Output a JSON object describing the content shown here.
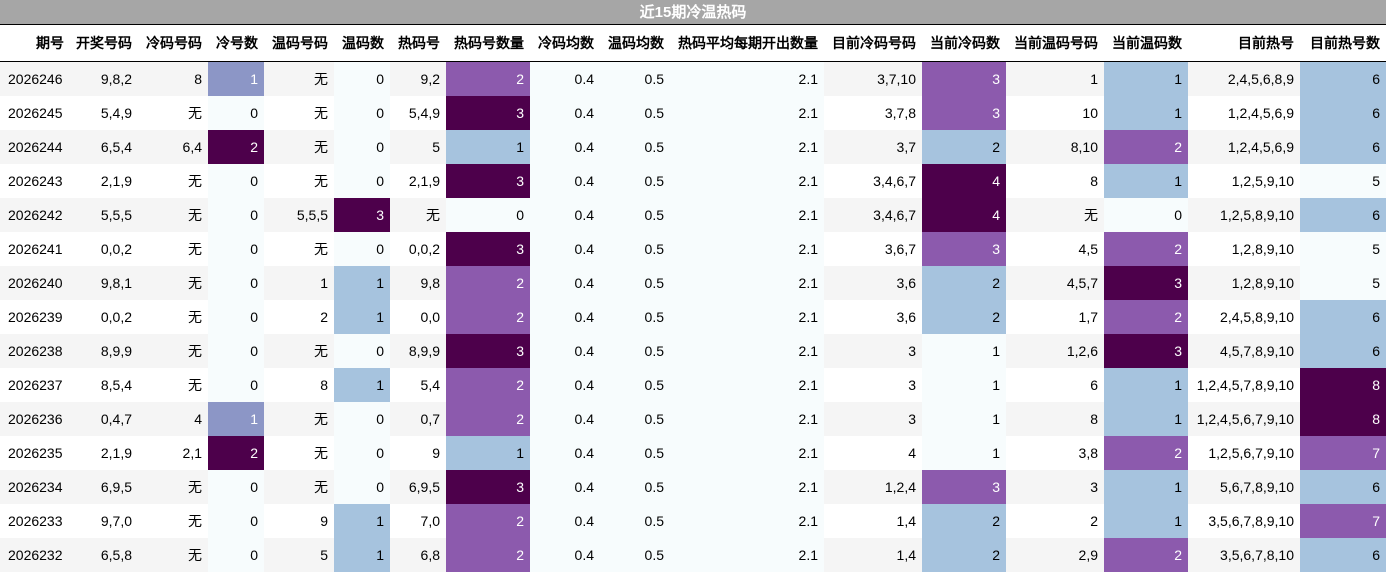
{
  "title": "近15期冷温热码",
  "columns": [
    "期号",
    "开奖号码",
    "冷码号码",
    "冷号数",
    "温码号码",
    "温码数",
    "热码号",
    "热码号数量",
    "冷码均数",
    "温码均数",
    "热码平均每期开出数量",
    "目前冷码号码",
    "当前冷码数",
    "当前温码号码",
    "当前温码数",
    "目前热号",
    "目前热号数"
  ],
  "rows": [
    [
      "2026246",
      "9,8,2",
      "8",
      "1",
      "无",
      "0",
      "9,2",
      "2",
      "0.4",
      "0.5",
      "2.1",
      "3,7,10",
      "3",
      "1",
      "1",
      "2,4,5,6,8,9",
      "6"
    ],
    [
      "2026245",
      "5,4,9",
      "无",
      "0",
      "无",
      "0",
      "5,4,9",
      "3",
      "0.4",
      "0.5",
      "2.1",
      "3,7,8",
      "3",
      "10",
      "1",
      "1,2,4,5,6,9",
      "6"
    ],
    [
      "2026244",
      "6,5,4",
      "6,4",
      "2",
      "无",
      "0",
      "5",
      "1",
      "0.4",
      "0.5",
      "2.1",
      "3,7",
      "2",
      "8,10",
      "2",
      "1,2,4,5,6,9",
      "6"
    ],
    [
      "2026243",
      "2,1,9",
      "无",
      "0",
      "无",
      "0",
      "2,1,9",
      "3",
      "0.4",
      "0.5",
      "2.1",
      "3,4,6,7",
      "4",
      "8",
      "1",
      "1,2,5,9,10",
      "5"
    ],
    [
      "2026242",
      "5,5,5",
      "无",
      "0",
      "5,5,5",
      "3",
      "无",
      "0",
      "0.4",
      "0.5",
      "2.1",
      "3,4,6,7",
      "4",
      "无",
      "0",
      "1,2,5,8,9,10",
      "6"
    ],
    [
      "2026241",
      "0,0,2",
      "无",
      "0",
      "无",
      "0",
      "0,0,2",
      "3",
      "0.4",
      "0.5",
      "2.1",
      "3,6,7",
      "3",
      "4,5",
      "2",
      "1,2,8,9,10",
      "5"
    ],
    [
      "2026240",
      "9,8,1",
      "无",
      "0",
      "1",
      "1",
      "9,8",
      "2",
      "0.4",
      "0.5",
      "2.1",
      "3,6",
      "2",
      "4,5,7",
      "3",
      "1,2,8,9,10",
      "5"
    ],
    [
      "2026239",
      "0,0,2",
      "无",
      "0",
      "2",
      "1",
      "0,0",
      "2",
      "0.4",
      "0.5",
      "2.1",
      "3,6",
      "2",
      "1,7",
      "2",
      "2,4,5,8,9,10",
      "6"
    ],
    [
      "2026238",
      "8,9,9",
      "无",
      "0",
      "无",
      "0",
      "8,9,9",
      "3",
      "0.4",
      "0.5",
      "2.1",
      "3",
      "1",
      "1,2,6",
      "3",
      "4,5,7,8,9,10",
      "6"
    ],
    [
      "2026237",
      "8,5,4",
      "无",
      "0",
      "8",
      "1",
      "5,4",
      "2",
      "0.4",
      "0.5",
      "2.1",
      "3",
      "1",
      "6",
      "1",
      "1,2,4,5,7,8,9,10",
      "8"
    ],
    [
      "2026236",
      "0,4,7",
      "4",
      "1",
      "无",
      "0",
      "0,7",
      "2",
      "0.4",
      "0.5",
      "2.1",
      "3",
      "1",
      "8",
      "1",
      "1,2,4,5,6,7,9,10",
      "8"
    ],
    [
      "2026235",
      "2,1,9",
      "2,1",
      "2",
      "无",
      "0",
      "9",
      "1",
      "0.4",
      "0.5",
      "2.1",
      "4",
      "1",
      "3,8",
      "2",
      "1,2,5,6,7,9,10",
      "7"
    ],
    [
      "2026234",
      "6,9,5",
      "无",
      "0",
      "无",
      "0",
      "6,9,5",
      "3",
      "0.4",
      "0.5",
      "2.1",
      "1,2,4",
      "3",
      "3",
      "1",
      "5,6,7,8,9,10",
      "6"
    ],
    [
      "2026233",
      "9,7,0",
      "无",
      "0",
      "9",
      "1",
      "7,0",
      "2",
      "0.4",
      "0.5",
      "2.1",
      "1,4",
      "2",
      "2",
      "1",
      "3,5,6,7,8,9,10",
      "7"
    ],
    [
      "2026232",
      "6,5,8",
      "无",
      "0",
      "5",
      "1",
      "6,8",
      "2",
      "0.4",
      "0.5",
      "2.1",
      "1,4",
      "2",
      "2,9",
      "2",
      "3,5,6,7,8,10",
      "6"
    ]
  ],
  "cell_colors": {
    "3": {
      "0": "#f7fcfd",
      "1": "#8c96c6",
      "2": "#4d004b"
    },
    "5": {
      "0": "#f7fcfd",
      "1": "#a6c3de",
      "3": "#4d004b"
    },
    "7": {
      "0": "#f7fcfd",
      "1": "#a6c3de",
      "2": "#8c5aad",
      "3": "#4d004b"
    },
    "8": {
      "*": "#f7fcfd"
    },
    "9": {
      "*": "#f7fcfd"
    },
    "10": {
      "*": "#f7fcfd"
    },
    "12": {
      "1": "#f7fcfd",
      "2": "#a6c3de",
      "3": "#8c5aad",
      "4": "#4d004b"
    },
    "14": {
      "0": "#f7fcfd",
      "1": "#a6c3de",
      "2": "#8c5aad",
      "3": "#4d004b"
    },
    "16": {
      "5": "#f7fcfd",
      "6": "#a6c3de",
      "7": "#8c5aad",
      "8": "#4d004b"
    }
  }
}
